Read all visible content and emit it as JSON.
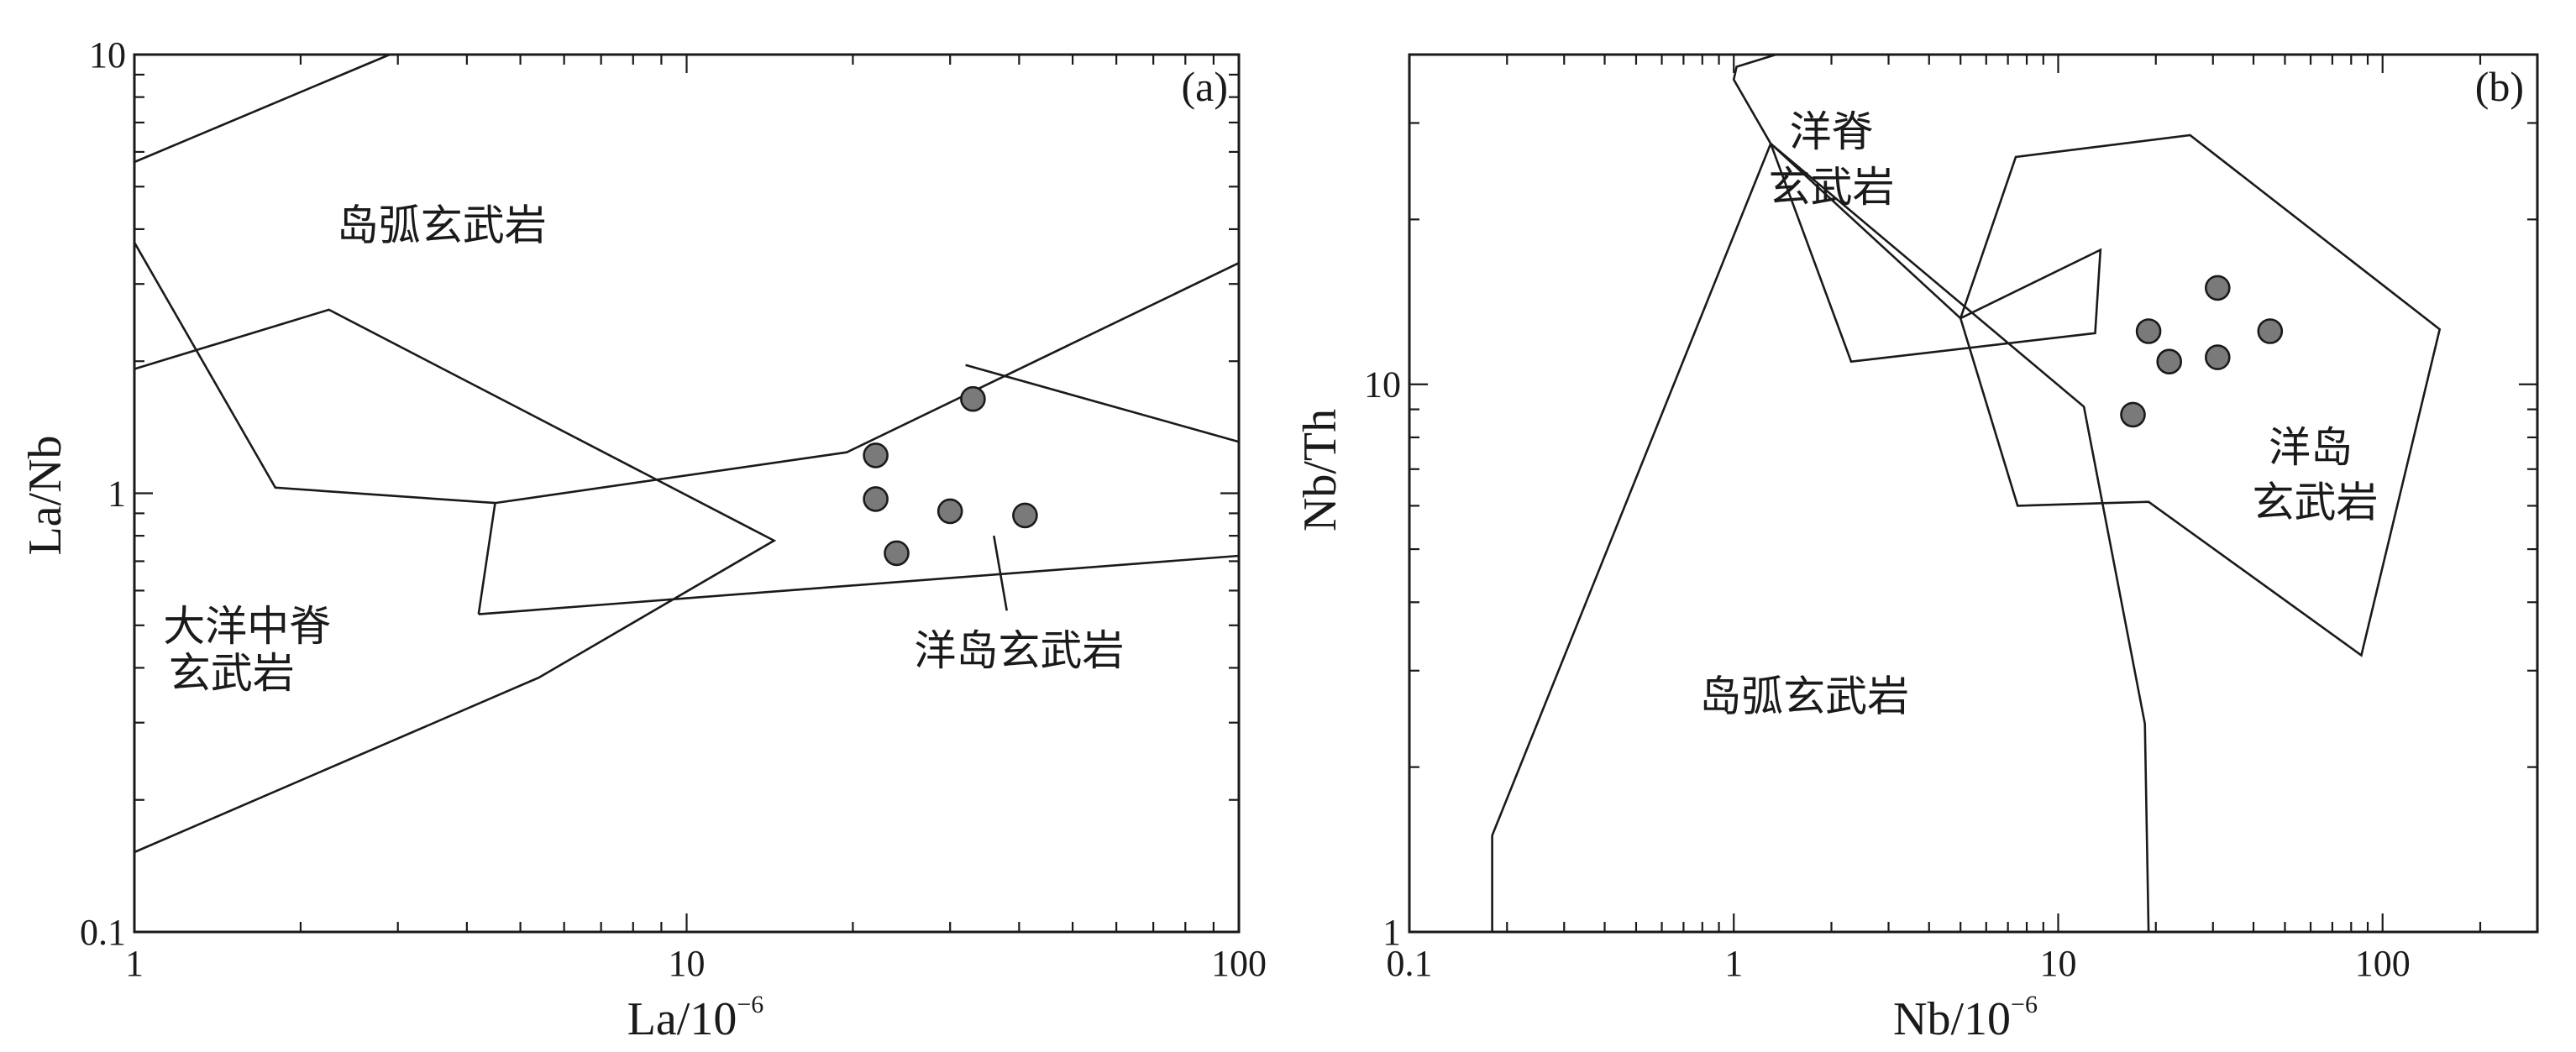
{
  "chart_data": [
    {
      "type": "scatter",
      "panel_label": "(a)",
      "xlabel": "La/10",
      "xlabel_exp": "−6",
      "ylabel": "La/Nb",
      "xscale": "log",
      "yscale": "log",
      "xlim": [
        1,
        100
      ],
      "ylim": [
        0.1,
        10
      ],
      "x_ticks": [
        1,
        10,
        100
      ],
      "x_tick_labels": [
        "1",
        "10",
        "100"
      ],
      "y_ticks": [
        0.1,
        1,
        10
      ],
      "y_tick_labels": [
        "0.1",
        "1",
        "10"
      ],
      "grid": false,
      "points": [
        {
          "x": 22.0,
          "y": 1.22
        },
        {
          "x": 33.0,
          "y": 1.64
        },
        {
          "x": 22.0,
          "y": 0.97
        },
        {
          "x": 30.0,
          "y": 0.91
        },
        {
          "x": 41.0,
          "y": 0.89
        },
        {
          "x": 24.0,
          "y": 0.73
        }
      ],
      "fields": [
        {
          "name": "oib",
          "points": [
            [
              4.5,
              0.95
            ],
            [
              19.5,
              1.24
            ],
            [
              100,
              3.35
            ]
          ]
        },
        {
          "name": "oib",
          "points": [
            [
              4.2,
              0.53
            ],
            [
              100,
              0.72
            ]
          ]
        },
        {
          "name": "oib",
          "points": [
            [
              4.5,
              0.95
            ],
            [
              4.2,
              0.53
            ]
          ]
        },
        {
          "name": "arc",
          "points": [
            [
              1,
              1.92
            ],
            [
              2.25,
              2.62
            ],
            [
              14.4,
              0.78
            ],
            [
              5.4,
              0.38
            ],
            [
              1,
              0.152
            ]
          ]
        },
        {
          "name": "arc",
          "points": [
            [
              1,
              3.73
            ],
            [
              1.8,
              1.03
            ],
            [
              4.5,
              0.95
            ]
          ]
        },
        {
          "name": "arc",
          "points": [
            [
              1,
              5.69
            ],
            [
              2.9,
              10
            ]
          ]
        },
        {
          "name": "arc",
          "points": [
            [
              32,
              1.96
            ],
            [
              100,
              1.31
            ]
          ]
        },
        {
          "name": "oib",
          "points": [
            [
              36,
              0.8
            ],
            [
              38,
              0.54
            ]
          ]
        }
      ],
      "annotations": [
        {
          "text": "岛弧玄武岩",
          "x": 3.6,
          "y": 4.1
        },
        {
          "text": "大洋中脊",
          "x": 1.6,
          "y": 0.5
        },
        {
          "text": "玄武岩",
          "x": 1.5,
          "y": 0.39
        },
        {
          "text": "洋岛玄武岩",
          "x": 40,
          "y": 0.44
        }
      ]
    },
    {
      "type": "scatter",
      "panel_label": "(b)",
      "xlabel": "Nb/10",
      "xlabel_exp": "−6",
      "ylabel": "Nb/Th",
      "xscale": "log",
      "yscale": "log",
      "xlim": [
        0.1,
        300
      ],
      "ylim": [
        1,
        40
      ],
      "x_ticks": [
        0.1,
        1,
        10,
        100
      ],
      "x_tick_labels": [
        "0.1",
        "1",
        "10",
        "100"
      ],
      "y_ticks": [
        1,
        10
      ],
      "y_tick_labels": [
        "1",
        "10"
      ],
      "grid": false,
      "points": [
        {
          "x": 31,
          "y": 15.0
        },
        {
          "x": 19,
          "y": 12.5
        },
        {
          "x": 45,
          "y": 12.5
        },
        {
          "x": 22,
          "y": 11.0
        },
        {
          "x": 31,
          "y": 11.2
        },
        {
          "x": 17,
          "y": 8.8
        }
      ],
      "fields": [
        {
          "name": "morb",
          "points": [
            [
              1.35,
              40
            ],
            [
              1.02,
              38
            ],
            [
              1.0,
              36
            ],
            [
              1.3,
              27.5
            ],
            [
              2.3,
              11
            ],
            [
              13,
              12.4
            ],
            [
              13.5,
              17.6
            ],
            [
              5,
              13.2
            ],
            [
              1.3,
              27.5
            ]
          ]
        },
        {
          "name": "arc",
          "points": [
            [
              0.18,
              1
            ],
            [
              0.18,
              1.5
            ],
            [
              1.3,
              27.5
            ],
            [
              12,
              9.1
            ],
            [
              18.5,
              2.4
            ],
            [
              19,
              1
            ]
          ]
        },
        {
          "name": "oib",
          "points": [
            [
              5,
              13.2
            ],
            [
              7.4,
              26
            ],
            [
              25.5,
              28.5
            ],
            [
              150,
              12.6
            ],
            [
              86,
              3.2
            ],
            [
              19,
              6.1
            ],
            [
              7.5,
              6.0
            ],
            [
              5,
              13.2
            ]
          ]
        }
      ],
      "annotations": [
        {
          "text": "洋脊",
          "x": 2.0,
          "y": 29.0
        },
        {
          "text": "玄武岩",
          "x": 2.0,
          "y": 23.0
        },
        {
          "text": "洋岛",
          "x": 60,
          "y": 7.7
        },
        {
          "text": "玄武岩",
          "x": 62,
          "y": 6.1
        },
        {
          "text": "岛弧玄武岩",
          "x": 1.65,
          "y": 2.7
        }
      ]
    }
  ]
}
